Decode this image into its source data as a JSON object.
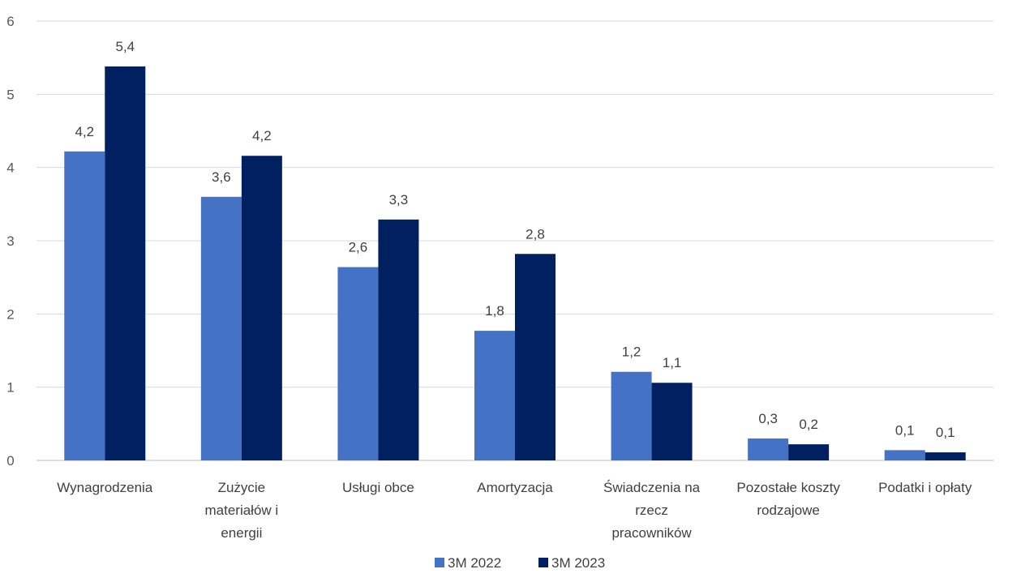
{
  "chart_data": {
    "type": "bar",
    "categories": [
      [
        "Wynagrodzenia"
      ],
      [
        "Zużycie",
        "materiałów i",
        "energii"
      ],
      [
        "Usługi obce"
      ],
      [
        "Amortyzacja"
      ],
      [
        "Świadczenia na",
        "rzecz",
        "pracowników"
      ],
      [
        "Pozostałe koszty",
        "rodzajowe"
      ],
      [
        "Podatki i opłaty"
      ]
    ],
    "series": [
      {
        "name": "3M 2022",
        "color": "#4472C4",
        "values": [
          4.22,
          3.6,
          2.64,
          1.77,
          1.21,
          0.3,
          0.14
        ],
        "labels": [
          "4,2",
          "3,6",
          "2,6",
          "1,8",
          "1,2",
          "0,3",
          "0,1"
        ]
      },
      {
        "name": "3M 2023",
        "color": "#002060",
        "values": [
          5.38,
          4.16,
          3.29,
          2.82,
          1.06,
          0.22,
          0.11
        ],
        "labels": [
          "5,4",
          "4,2",
          "3,3",
          "2,8",
          "1,1",
          "0,2",
          "0,1"
        ]
      }
    ],
    "yticks": [
      "0",
      "1",
      "2",
      "3",
      "4",
      "5",
      "6"
    ],
    "ylim": [
      0,
      6
    ],
    "grid": true,
    "legend": "bottom"
  }
}
